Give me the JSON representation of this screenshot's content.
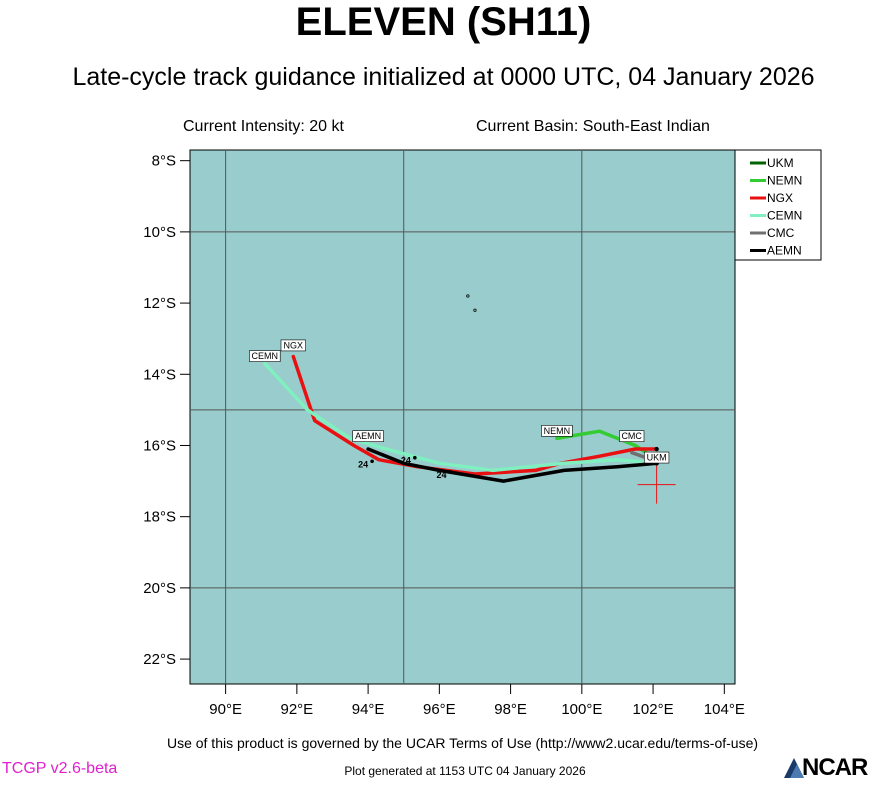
{
  "header": {
    "title": "ELEVEN (SH11)",
    "subtitle": "Late-cycle track guidance initialized at 0000 UTC, 04 January 2026",
    "intensity": "Current Intensity: 20 kt",
    "basin": "Current Basin: South-East Indian"
  },
  "map": {
    "lon_range": [
      89,
      104.3
    ],
    "lat_range": [
      -22.7,
      -7.7
    ],
    "lon_ticks": [
      {
        "value": 90,
        "label": "90°E"
      },
      {
        "value": 92,
        "label": "92°E"
      },
      {
        "value": 94,
        "label": "94°E"
      },
      {
        "value": 96,
        "label": "96°E"
      },
      {
        "value": 98,
        "label": "98°E"
      },
      {
        "value": 100,
        "label": "100°E"
      },
      {
        "value": 102,
        "label": "102°E"
      },
      {
        "value": 104,
        "label": "104°E"
      }
    ],
    "lat_ticks": [
      {
        "value": -8,
        "label": "8°S"
      },
      {
        "value": -10,
        "label": "10°S"
      },
      {
        "value": -12,
        "label": "12°S"
      },
      {
        "value": -14,
        "label": "14°S"
      },
      {
        "value": -16,
        "label": "16°S"
      },
      {
        "value": -18,
        "label": "18°S"
      },
      {
        "value": -20,
        "label": "20°S"
      },
      {
        "value": -22,
        "label": "22°S"
      }
    ],
    "grid_lons": [
      90,
      95,
      100
    ],
    "grid_lats": [
      -10,
      -15,
      -20
    ],
    "ocean_color": "#99cccc",
    "current_position": {
      "lon": 102.1,
      "lat": -17.1
    },
    "tracks": [
      {
        "name": "UKM",
        "color": "#006400",
        "points": [
          [
            102.1,
            -16.3
          ]
        ]
      },
      {
        "name": "NEMN",
        "color": "#33cc33",
        "points": [
          [
            102.1,
            -16.4
          ],
          [
            101.5,
            -16.0
          ],
          [
            100.5,
            -15.6
          ],
          [
            99.3,
            -15.8
          ]
        ]
      },
      {
        "name": "NGX",
        "color": "#e81010",
        "points": [
          [
            102.1,
            -16.1
          ],
          [
            101.5,
            -16.1
          ],
          [
            100.5,
            -16.3
          ],
          [
            99.4,
            -16.5
          ],
          [
            98.7,
            -16.7
          ],
          [
            97.0,
            -16.8
          ],
          [
            95.4,
            -16.6
          ],
          [
            94.3,
            -16.4
          ],
          [
            93.6,
            -16.0
          ],
          [
            92.5,
            -15.3
          ],
          [
            92.3,
            -14.7
          ],
          [
            91.9,
            -13.5
          ]
        ]
      },
      {
        "name": "CEMN",
        "color": "#80f0c0",
        "points": [
          [
            102.1,
            -16.5
          ],
          [
            101.0,
            -16.4
          ],
          [
            99.5,
            -16.5
          ],
          [
            97.5,
            -16.7
          ],
          [
            96.0,
            -16.5
          ],
          [
            94.5,
            -16.1
          ],
          [
            93.5,
            -15.8
          ],
          [
            92.3,
            -15.0
          ],
          [
            91.1,
            -13.7
          ]
        ]
      },
      {
        "name": "CMC",
        "color": "#707070",
        "points": [
          [
            102.1,
            -16.45
          ],
          [
            101.4,
            -16.2
          ]
        ]
      },
      {
        "name": "AEMN",
        "color": "#000000",
        "points": [
          [
            102.1,
            -16.5
          ],
          [
            101.0,
            -16.6
          ],
          [
            99.5,
            -16.7
          ],
          [
            97.8,
            -17.0
          ],
          [
            96.0,
            -16.7
          ],
          [
            95.0,
            -16.5
          ],
          [
            94.0,
            -16.1
          ]
        ]
      }
    ],
    "tags": [
      {
        "text": "CEMN",
        "lon": 91.1,
        "lat": -13.7
      },
      {
        "text": "NGX",
        "lon": 91.9,
        "lat": -13.4
      },
      {
        "text": "AEMN",
        "lon": 94.0,
        "lat": -15.95
      },
      {
        "text": "NEMN",
        "lon": 99.3,
        "lat": -15.8
      },
      {
        "text": "CMC",
        "lon": 101.4,
        "lat": -15.95
      },
      {
        "text": "UKM",
        "lon": 102.1,
        "lat": -16.55
      }
    ],
    "hour_labels": [
      {
        "text": "24",
        "lon": 94.0,
        "lat": -16.5
      },
      {
        "text": "24",
        "lon": 95.2,
        "lat": -16.4
      },
      {
        "text": "24",
        "lon": 96.2,
        "lat": -16.8
      }
    ],
    "island_dots": [
      [
        96.8,
        -11.8
      ],
      [
        97.0,
        -12.2
      ]
    ]
  },
  "legend": {
    "items": [
      {
        "name": "UKM",
        "color": "#006400"
      },
      {
        "name": "NEMN",
        "color": "#33cc33"
      },
      {
        "name": "NGX",
        "color": "#e81010"
      },
      {
        "name": "CEMN",
        "color": "#80f0c0"
      },
      {
        "name": "CMC",
        "color": "#707070"
      },
      {
        "name": "AEMN",
        "color": "#000000"
      }
    ]
  },
  "footer": {
    "terms": "Use of this product is governed by the UCAR Terms of Use (http://www2.ucar.edu/terms-of-use)",
    "version": "TCGP v2.6-beta",
    "generated": "Plot generated at 1153 UTC   04 January 2026",
    "logo": "NCAR"
  }
}
